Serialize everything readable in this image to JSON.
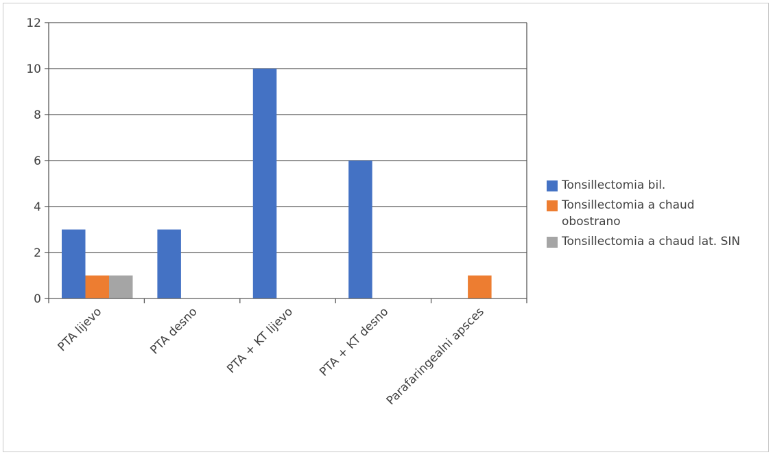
{
  "chart_data": {
    "type": "bar",
    "categories": [
      "PTA lijevo",
      "PTA desno",
      "PTA + KT lijevo",
      "PTA + KT desno",
      "Parafaringealni apsces"
    ],
    "series": [
      {
        "name": "Tonsillectomia bil.",
        "color": "#4472c4",
        "values": [
          3,
          3,
          10,
          6,
          0
        ]
      },
      {
        "name": "Tonsillectomia a chaud obostrano",
        "color": "#ed7d31",
        "values": [
          1,
          0,
          0,
          0,
          1
        ]
      },
      {
        "name": "Tonsillectomia a chaud lat. SIN",
        "color": "#a5a5a5",
        "values": [
          1,
          0,
          0,
          0,
          0
        ]
      }
    ],
    "yticks": [
      "0",
      "2",
      "4",
      "6",
      "8",
      "10",
      "12"
    ],
    "ylim": [
      0,
      12
    ],
    "grid": true,
    "legend_position": "right",
    "title": "",
    "xlabel": "",
    "ylabel": ""
  },
  "legend": {
    "items": [
      {
        "label": "Tonsillectomia bil.",
        "color": "#4472c4"
      },
      {
        "label": "Tonsillectomia a chaud obostrano",
        "color": "#ed7d31"
      },
      {
        "label": "Tonsillectomia a chaud lat. SIN",
        "color": "#a5a5a5"
      }
    ]
  }
}
